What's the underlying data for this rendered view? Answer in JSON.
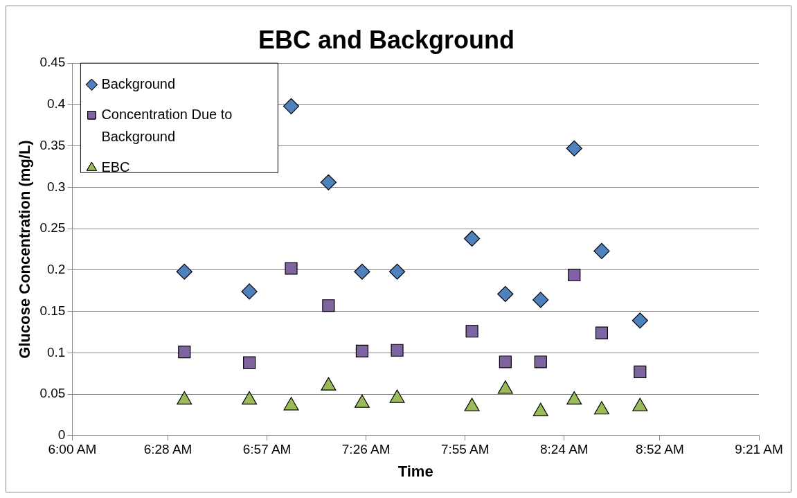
{
  "chart_data": {
    "type": "scatter",
    "title": "EBC and Background",
    "xlabel": "Time",
    "ylabel": "Glucose Concentration (mg/L)",
    "x": [
      6.547,
      6.864,
      7.068,
      7.25,
      7.414,
      7.585,
      7.95,
      8.113,
      8.285,
      8.449,
      8.583,
      8.77
    ],
    "series": [
      {
        "name": "Background",
        "color": "#4f81bd",
        "marker": "diamond",
        "values": [
          0.198,
          0.174,
          0.398,
          0.306,
          0.198,
          0.198,
          0.238,
          0.171,
          0.164,
          0.347,
          0.223,
          0.139
        ]
      },
      {
        "name": "Concentration Due to Background",
        "color": "#8064a2",
        "marker": "square",
        "values": [
          0.101,
          0.088,
          0.202,
          0.157,
          0.102,
          0.103,
          0.126,
          0.089,
          0.089,
          0.194,
          0.124,
          0.077
        ]
      },
      {
        "name": "EBC",
        "color": "#9bbb59",
        "marker": "triangle",
        "values": [
          0.043,
          0.043,
          0.036,
          0.06,
          0.039,
          0.045,
          0.035,
          0.056,
          0.029,
          0.043,
          0.031,
          0.035
        ]
      }
    ],
    "xlim": [
      6,
      9.35
    ],
    "xticks": [
      {
        "value": 6,
        "label": "6:00 AM"
      },
      {
        "value": 6.4667,
        "label": "6:28 AM"
      },
      {
        "value": 6.95,
        "label": "6:57 AM"
      },
      {
        "value": 7.4333,
        "label": "7:26 AM"
      },
      {
        "value": 7.9167,
        "label": "7:55 AM"
      },
      {
        "value": 8.4,
        "label": "8:24 AM"
      },
      {
        "value": 8.8667,
        "label": "8:52 AM"
      },
      {
        "value": 9.35,
        "label": "9:21 AM"
      }
    ],
    "ylim": [
      0,
      0.45
    ],
    "yticks": [
      0,
      0.05,
      0.1,
      0.15,
      0.2,
      0.25,
      0.3,
      0.35,
      0.4,
      0.45
    ],
    "grid": "y",
    "legend": "top left"
  }
}
